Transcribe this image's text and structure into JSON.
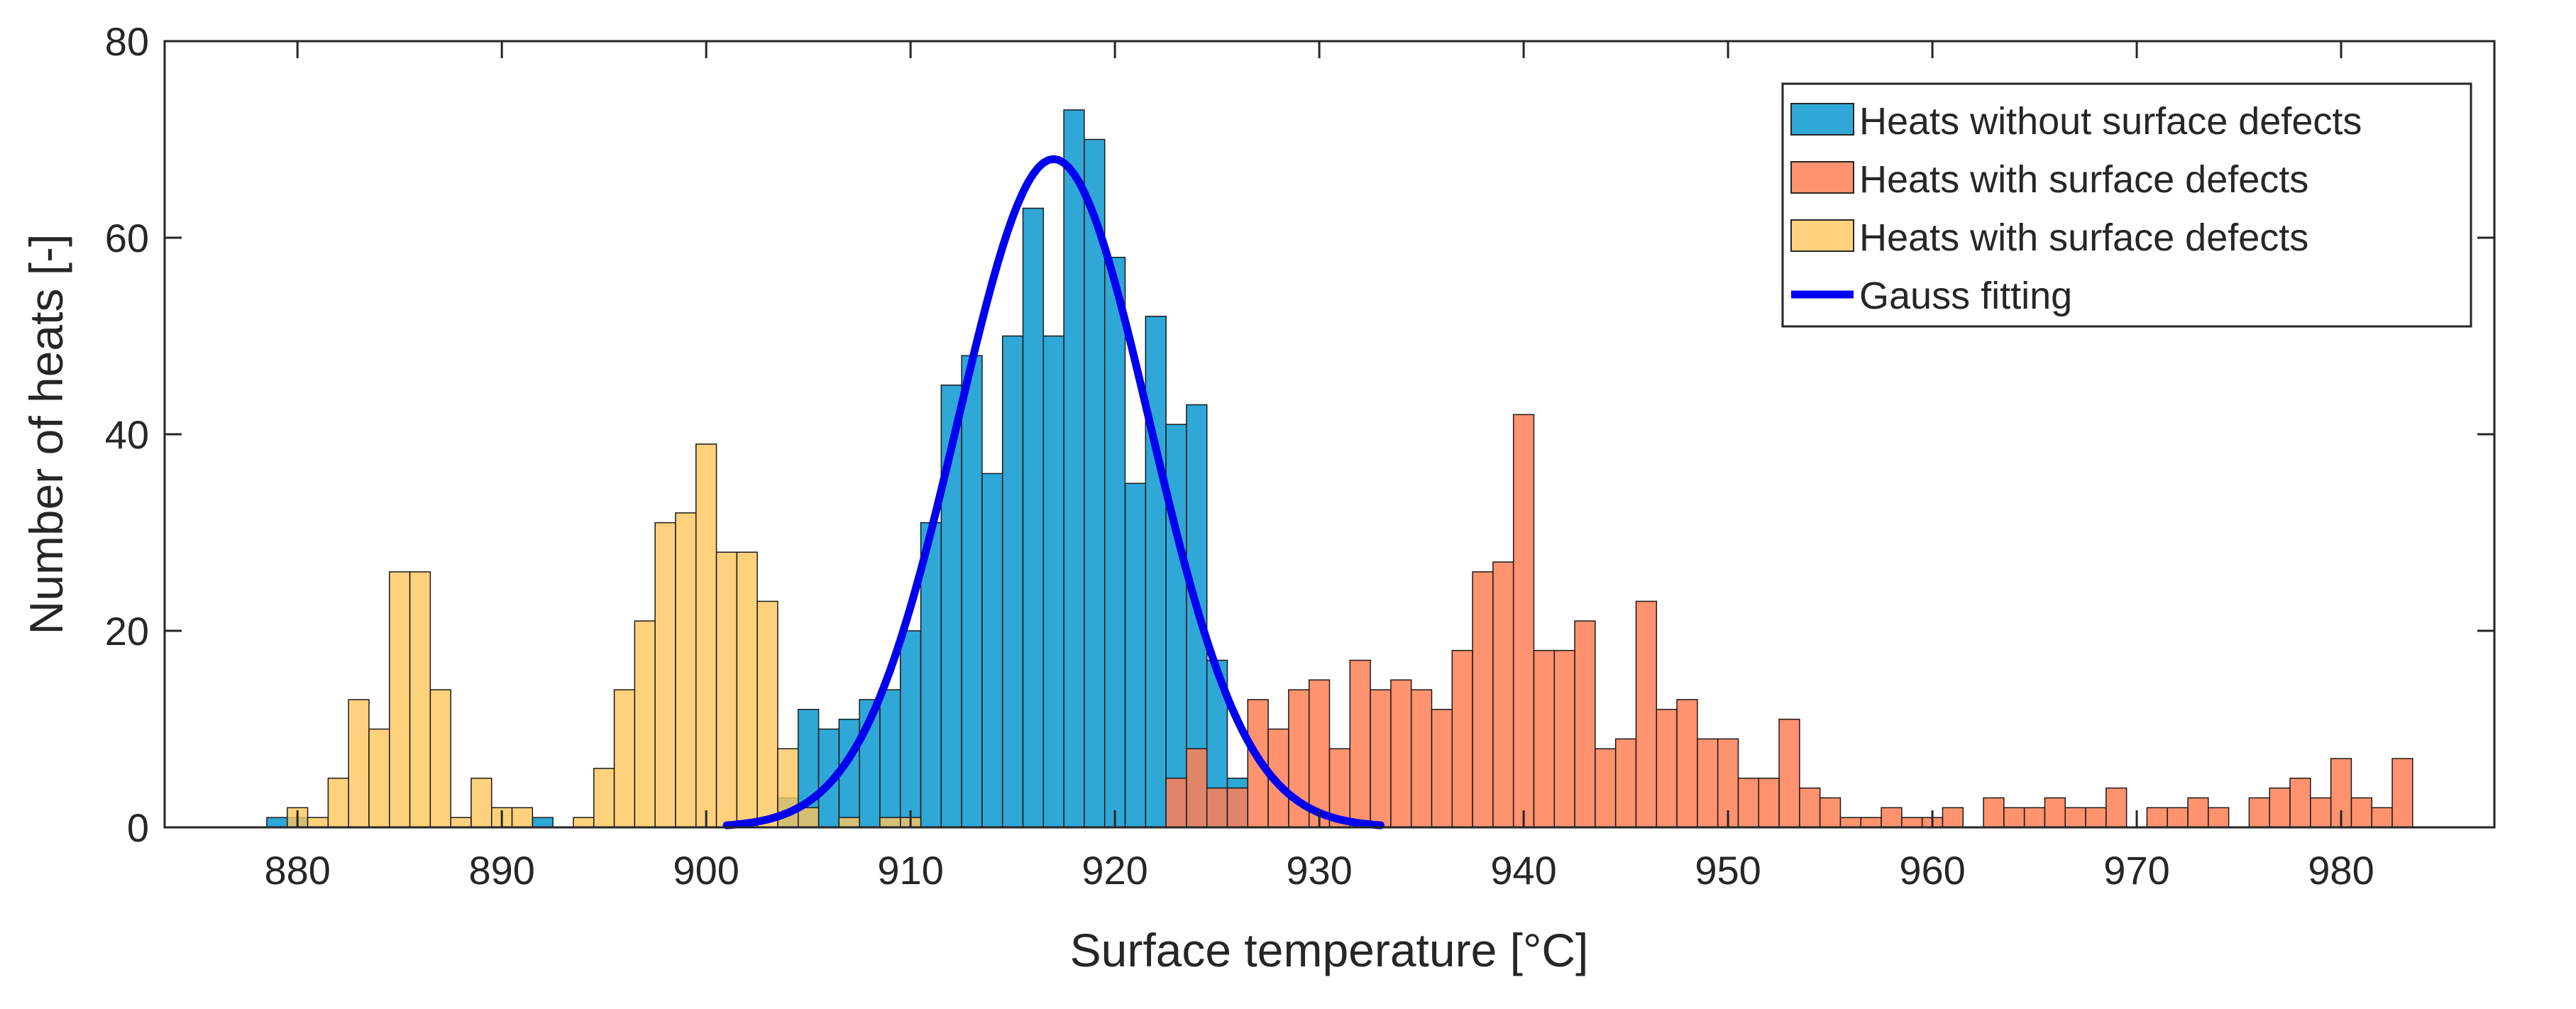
{
  "chart_data": {
    "type": "bar",
    "title": "",
    "xlabel": "Surface temperature [°C]",
    "ylabel": "Number of heats [-]",
    "xlim": [
      873.5,
      987.5
    ],
    "ylim": [
      0,
      80
    ],
    "xticks": [
      880,
      890,
      900,
      910,
      920,
      930,
      940,
      950,
      960,
      970,
      980
    ],
    "yticks": [
      0,
      20,
      40,
      60,
      80
    ],
    "grid": false,
    "legend_position": "top-right",
    "bin_width": 1,
    "series": [
      {
        "name": "Heats without surface defects",
        "color": "#0a98d0",
        "opacity": 0.85,
        "x": [
          879,
          880,
          881,
          882,
          883,
          884,
          885,
          886,
          887,
          888,
          889,
          890,
          891,
          892,
          893,
          894,
          895,
          896,
          897,
          898,
          899,
          900,
          901,
          902,
          903,
          904,
          905,
          906,
          907,
          908,
          909,
          910,
          911,
          912,
          913,
          914,
          915,
          916,
          917,
          918,
          919,
          920,
          921,
          922,
          923,
          924,
          925,
          926
        ],
        "values": [
          1,
          1,
          0,
          0,
          0,
          0,
          0,
          0,
          0,
          0,
          0,
          0,
          0,
          1,
          0,
          0,
          0,
          0,
          0,
          0,
          0,
          0,
          0,
          0,
          0,
          3,
          12,
          10,
          11,
          13,
          14,
          20,
          31,
          45,
          48,
          36,
          50,
          63,
          50,
          73,
          70,
          58,
          35,
          52,
          41,
          43,
          17,
          5
        ]
      },
      {
        "name": "Heats with surface defects",
        "color": "#ff7f56",
        "opacity": 0.85,
        "x": [
          923,
          924,
          925,
          926,
          927,
          928,
          929,
          930,
          931,
          932,
          933,
          934,
          935,
          936,
          937,
          938,
          939,
          940,
          941,
          942,
          943,
          944,
          945,
          946,
          947,
          948,
          949,
          950,
          951,
          952,
          953,
          954,
          955,
          956,
          957,
          958,
          959,
          960,
          961,
          962,
          963,
          964,
          965,
          966,
          967,
          968,
          969,
          970,
          971,
          972,
          973,
          974,
          975,
          976,
          977,
          978,
          979,
          980,
          981,
          982,
          983
        ],
        "values": [
          5,
          8,
          4,
          4,
          13,
          10,
          14,
          15,
          8,
          17,
          14,
          15,
          14,
          12,
          18,
          26,
          27,
          42,
          18,
          18,
          21,
          8,
          9,
          23,
          12,
          13,
          9,
          9,
          5,
          5,
          11,
          4,
          3,
          1,
          1,
          2,
          1,
          1,
          2,
          0,
          3,
          2,
          2,
          3,
          2,
          2,
          4,
          0,
          2,
          2,
          3,
          2,
          0,
          3,
          4,
          5,
          3,
          7,
          3,
          2,
          7
        ]
      },
      {
        "name": "Heats with surface defects",
        "color": "#ffc55c",
        "opacity": 0.8,
        "x": [
          879,
          880,
          881,
          882,
          883,
          884,
          885,
          886,
          887,
          888,
          889,
          890,
          891,
          892,
          893,
          894,
          895,
          896,
          897,
          898,
          899,
          900,
          901,
          902,
          903,
          904,
          905,
          906,
          907,
          908,
          909,
          910
        ],
        "values": [
          0,
          2,
          1,
          5,
          13,
          10,
          26,
          26,
          14,
          1,
          5,
          2,
          2,
          0,
          0,
          1,
          6,
          14,
          21,
          31,
          32,
          39,
          28,
          28,
          23,
          8,
          2,
          0,
          1,
          0,
          1,
          1
        ]
      }
    ],
    "fit": {
      "name": "Gauss fitting",
      "color": "#0000f0",
      "amplitude": 68,
      "mean": 917,
      "sigma": 4.7,
      "range": [
        901,
        933
      ]
    }
  }
}
